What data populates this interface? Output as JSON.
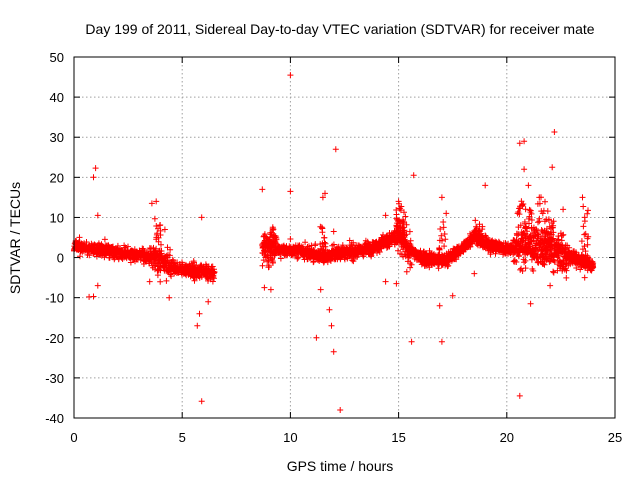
{
  "chart_data": {
    "type": "scatter",
    "title": "Day 199 of 2011, Sidereal Day-to-day VTEC variation (SDTVAR) for receiver mate",
    "xlabel": "GPS time / hours",
    "ylabel": "SDTVAR / TECUs",
    "xlim": [
      0,
      25
    ],
    "ylim": [
      -40,
      50
    ],
    "xticks": [
      0,
      5,
      10,
      15,
      20,
      25
    ],
    "yticks": [
      -40,
      -30,
      -20,
      -10,
      0,
      10,
      20,
      30,
      40,
      50
    ],
    "grid": true,
    "marker": "+",
    "color": "#ff0000",
    "series": [
      {
        "name": "SDTVAR",
        "trend": [
          [
            0.0,
            3.0
          ],
          [
            0.5,
            2.5
          ],
          [
            1.0,
            2.0
          ],
          [
            1.5,
            1.8
          ],
          [
            2.0,
            1.5
          ],
          [
            2.5,
            1.0
          ],
          [
            3.0,
            0.5
          ],
          [
            3.5,
            0.0
          ],
          [
            4.0,
            -1.0
          ],
          [
            4.5,
            -2.0
          ],
          [
            5.0,
            -3.0
          ],
          [
            5.5,
            -3.5
          ],
          [
            6.5,
            -4.0
          ]
        ],
        "trend2": [
          [
            8.7,
            3.0
          ],
          [
            9.5,
            2.0
          ],
          [
            10.5,
            1.5
          ],
          [
            11.0,
            1.0
          ],
          [
            11.5,
            0.0
          ],
          [
            12.0,
            1.0
          ],
          [
            13.0,
            1.5
          ],
          [
            14.0,
            3.0
          ],
          [
            15.0,
            5.5
          ],
          [
            15.3,
            3.0
          ],
          [
            16.0,
            0.0
          ],
          [
            17.0,
            -1.0
          ],
          [
            17.5,
            0.5
          ],
          [
            18.0,
            2.5
          ],
          [
            18.5,
            5.5
          ],
          [
            19.0,
            3.5
          ],
          [
            20.0,
            2.0
          ],
          [
            21.0,
            3.0
          ],
          [
            22.0,
            2.0
          ],
          [
            23.0,
            0.0
          ],
          [
            24.0,
            -2.0
          ]
        ],
        "outliers": [
          [
            1.0,
            22.3
          ],
          [
            0.9,
            20.0
          ],
          [
            1.1,
            10.5
          ],
          [
            0.9,
            -9.7
          ],
          [
            0.7,
            -9.8
          ],
          [
            1.1,
            -7.0
          ],
          [
            3.6,
            13.5
          ],
          [
            3.8,
            14.0
          ],
          [
            4.2,
            7.0
          ],
          [
            3.5,
            -6.0
          ],
          [
            4.4,
            -10.0
          ],
          [
            5.7,
            -17.0
          ],
          [
            5.8,
            -14.0
          ],
          [
            5.9,
            -35.8
          ],
          [
            5.9,
            10.0
          ],
          [
            6.2,
            -11.0
          ],
          [
            8.7,
            17.0
          ],
          [
            8.8,
            -7.5
          ],
          [
            9.1,
            -8.0
          ],
          [
            10.0,
            45.5
          ],
          [
            10.0,
            16.5
          ],
          [
            11.2,
            -20.0
          ],
          [
            11.5,
            15.0
          ],
          [
            11.8,
            -13.0
          ],
          [
            11.9,
            -17.0
          ],
          [
            12.0,
            -23.5
          ],
          [
            12.1,
            27.0
          ],
          [
            12.3,
            -38.0
          ],
          [
            11.6,
            16.0
          ],
          [
            12.0,
            6.5
          ],
          [
            11.4,
            -8.0
          ],
          [
            14.4,
            10.5
          ],
          [
            14.4,
            -6.0
          ],
          [
            14.9,
            -6.5
          ],
          [
            15.6,
            -21.0
          ],
          [
            15.7,
            20.5
          ],
          [
            15.0,
            14.0
          ],
          [
            17.0,
            15.0
          ],
          [
            17.0,
            -21.0
          ],
          [
            16.9,
            -12.0
          ],
          [
            17.5,
            -9.5
          ],
          [
            18.5,
            -4.0
          ],
          [
            19.0,
            18.0
          ],
          [
            17.2,
            11.0
          ],
          [
            20.6,
            28.5
          ],
          [
            20.8,
            29.0
          ],
          [
            20.6,
            -34.5
          ],
          [
            21.1,
            -11.5
          ],
          [
            20.8,
            22.0
          ],
          [
            21.0,
            18.0
          ],
          [
            22.2,
            31.3
          ],
          [
            22.1,
            22.5
          ],
          [
            22.6,
            12.0
          ],
          [
            22.0,
            -7.0
          ],
          [
            23.5,
            15.0
          ],
          [
            23.6,
            10.0
          ],
          [
            23.6,
            -5.0
          ],
          [
            21.5,
            15.0
          ],
          [
            20.5,
            11.0
          ]
        ]
      }
    ]
  }
}
